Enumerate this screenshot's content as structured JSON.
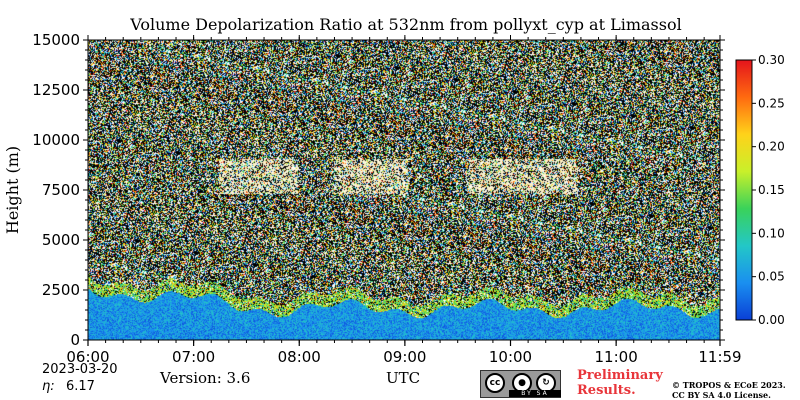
{
  "chart_data": {
    "type": "heatmap",
    "title": "Volume Depolarization Ratio at 532nm from pollyxt_cyp at Limassol",
    "ylabel": "Height (m)",
    "xlabel": "UTC",
    "x_ticks": [
      "06:00",
      "07:00",
      "08:00",
      "09:00",
      "10:00",
      "11:00",
      "11:59"
    ],
    "x_range": [
      "06:00",
      "11:59"
    ],
    "y_ticks": [
      0,
      2500,
      5000,
      7500,
      10000,
      12500,
      15000
    ],
    "ylim": [
      0,
      15000
    ],
    "colorbar": {
      "ticks": [
        "0.00",
        "0.05",
        "0.10",
        "0.15",
        "0.20",
        "0.25",
        "0.30"
      ],
      "range": [
        0,
        0.3
      ],
      "colormap": [
        "#0a3fd6",
        "#1a8ff0",
        "#23c7c7",
        "#3ad25a",
        "#c9f02a",
        "#ffd21a",
        "#ff6a10",
        "#e4141c"
      ]
    },
    "features": [
      {
        "description": "low-depolarization boundary layer aerosol",
        "height_top": 2000,
        "value": 0.03
      },
      {
        "description": "high-depolarization cloud layer",
        "height_bottom": 7000,
        "height_top": 9500,
        "value": 0.3
      }
    ]
  },
  "footer": {
    "date": "2023-03-20",
    "eta_label": "η:",
    "eta_value": "6.17",
    "version": "Version: 3.6",
    "utc": "UTC",
    "preliminary_1": "Preliminary",
    "preliminary_2": "Results.",
    "copyright_1": "© TROPOS & ECoE 2023.",
    "copyright_2": "CC BY SA 4.0 License.",
    "cc_badge": {
      "cc": "cc",
      "by_icon": "person-icon",
      "sa_icon": "share-alike-icon",
      "sub": "BY SA"
    }
  }
}
